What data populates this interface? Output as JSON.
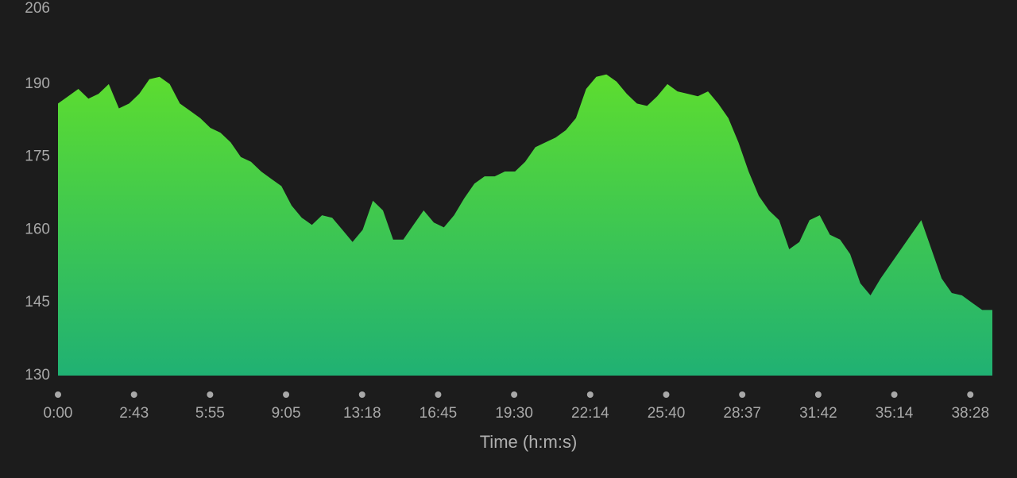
{
  "chart_data": {
    "type": "area",
    "x_label": "Time (h:m:s)",
    "xticks": [
      "0:00",
      "2:43",
      "5:55",
      "9:05",
      "13:18",
      "16:45",
      "19:30",
      "22:14",
      "25:40",
      "28:37",
      "31:42",
      "35:14",
      "38:28"
    ],
    "values": [
      186,
      187.5,
      189,
      187,
      188,
      190,
      185,
      186,
      188,
      191,
      191.5,
      190,
      186,
      184.5,
      183,
      181,
      180,
      178,
      175,
      174,
      172,
      170.5,
      169,
      165,
      162.5,
      161,
      163,
      162.5,
      160,
      157.5,
      160,
      166,
      164,
      158,
      158,
      161,
      164,
      161.5,
      160.5,
      163,
      166.5,
      169.5,
      171,
      171,
      172,
      172,
      174,
      177,
      178,
      179,
      180.5,
      183,
      189,
      191.5,
      192,
      190.5,
      188,
      186,
      185.5,
      187.5,
      190,
      188.5,
      188,
      187.5,
      188.5,
      186,
      183,
      178,
      172,
      167,
      164,
      162,
      156,
      157.5,
      162,
      163,
      159,
      158,
      155,
      149,
      146.5,
      150,
      153,
      156,
      159,
      162,
      156,
      150,
      147,
      146.5,
      145,
      143.5,
      143.5
    ],
    "ylim": [
      130,
      206
    ],
    "yticks": [
      130,
      145,
      160,
      175,
      190,
      206
    ],
    "colors": [
      "#5ddd2f",
      "#20b173"
    ]
  }
}
